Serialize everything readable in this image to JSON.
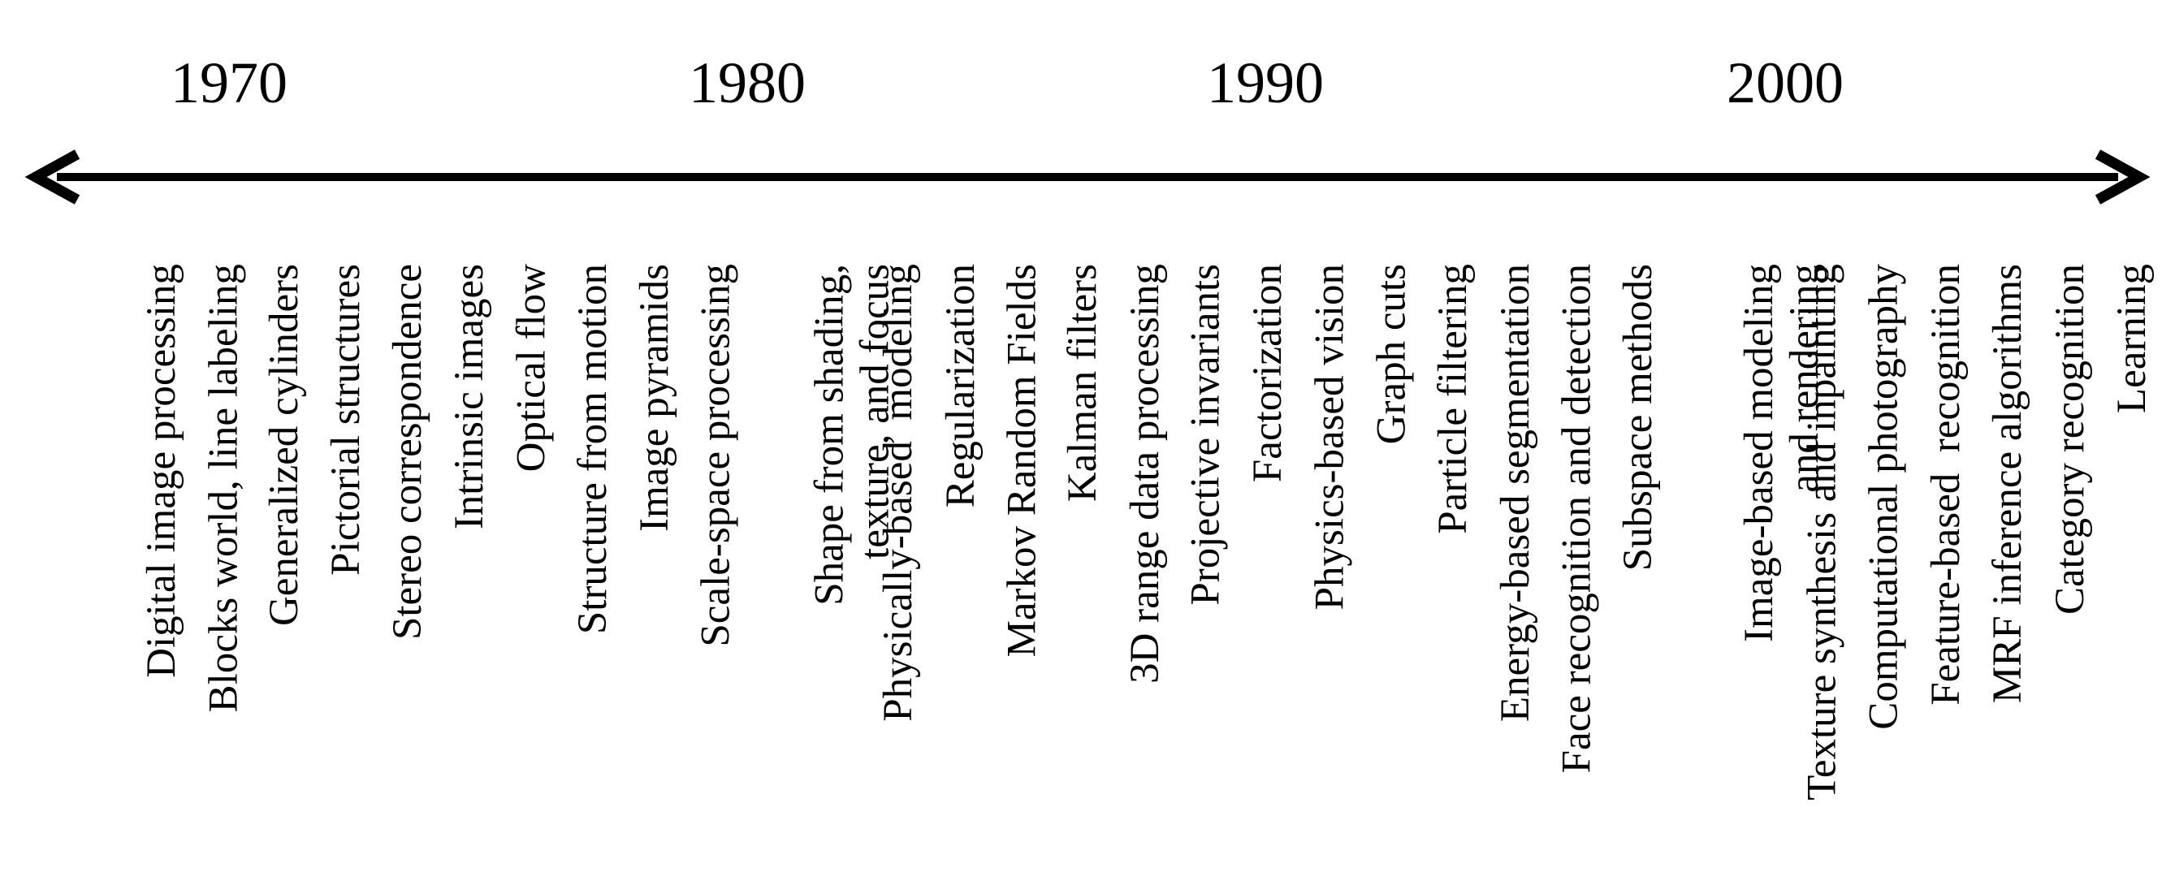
{
  "timeline": {
    "years": [
      "1970",
      "1980",
      "1990",
      "2000"
    ],
    "topics": [
      "Digital image processing",
      "Blocks world, line labeling",
      "Generalized cylinders",
      "Pictorial structures",
      "Stereo correspondence",
      "Intrinsic images",
      "Optical flow",
      "Structure from motion",
      "Image pyramids",
      "Scale-space processing",
      "Shape from shading,\ntexture, and focus",
      "Physically-based  modeling",
      "Regularization",
      "Markov Random Fields",
      "Kalman filters",
      "3D range data processing",
      "Projective invariants",
      "Factorization",
      "Physics-based vision",
      "Graph cuts",
      "Particle filtering",
      "Energy-based segmentation",
      "Face recognition and detection",
      "Subspace methods",
      "Image-based modeling\nand rendering",
      "Texture synthesis and inpainting",
      "Computational photography",
      "Feature-based  recognition",
      "MRF inference algorithms",
      "Category recognition",
      "Learning"
    ],
    "colors": {
      "line": "#000000",
      "text": "#000000"
    }
  }
}
